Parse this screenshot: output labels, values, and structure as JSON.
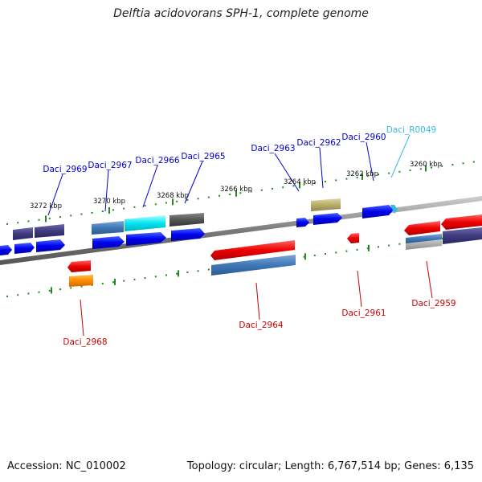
{
  "title": "Delftia acidovorans SPH-1, complete genome",
  "footer": {
    "accession": "Accession: NC_010002",
    "topology": "Topology: circular; Length: 6,767,514 bp; Genes: 6,135"
  },
  "colors": {
    "forward_label": "#0000cc",
    "reverse_label": "#cc0000",
    "rna_label": "#33bbdd",
    "tick": "#228822",
    "backbone": "#888888"
  },
  "scale_labels": [
    "3272 kbp",
    "3270 kbp",
    "3268 kbp",
    "3266 kbp",
    "3264 kbp",
    "3262 kbp",
    "3260 kbp"
  ],
  "genes_top": [
    {
      "label": "Daci_2969",
      "color": "#0000cc"
    },
    {
      "label": "Daci_2967",
      "color": "#0000cc"
    },
    {
      "label": "Daci_2966",
      "color": "#0000cc"
    },
    {
      "label": "Daci_2965",
      "color": "#0000cc"
    },
    {
      "label": "Daci_2963",
      "color": "#0000cc"
    },
    {
      "label": "Daci_2962",
      "color": "#0000cc"
    },
    {
      "label": "Daci_2960",
      "color": "#0000cc"
    },
    {
      "label": "Daci_R0049",
      "color": "#33bbdd"
    }
  ],
  "genes_bottom": [
    {
      "label": "Daci_2968",
      "color": "#cc0000"
    },
    {
      "label": "Daci_2964",
      "color": "#cc0000"
    },
    {
      "label": "Daci_2961",
      "color": "#cc0000"
    },
    {
      "label": "Daci_2959",
      "color": "#cc0000"
    }
  ]
}
